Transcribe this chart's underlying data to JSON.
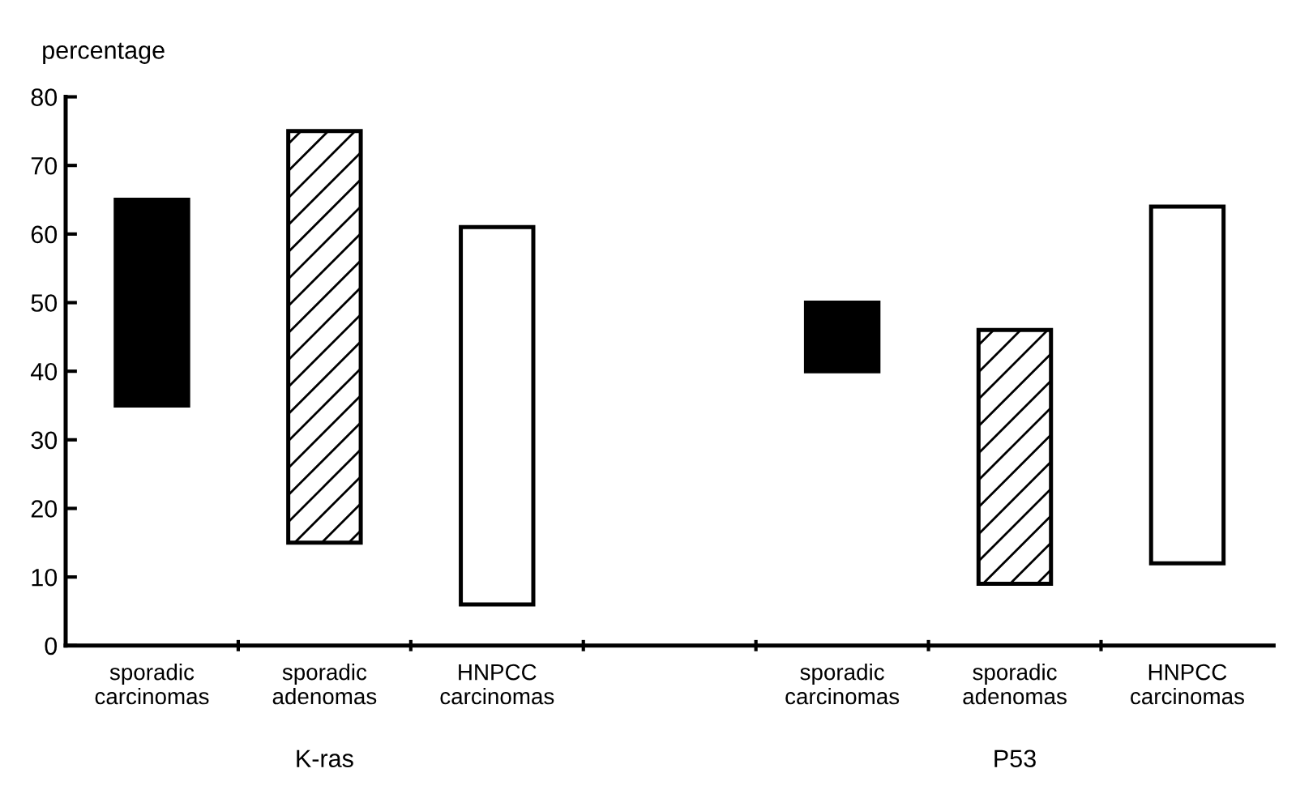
{
  "chart_data": {
    "type": "bar",
    "ylabel": "percentage",
    "categories": [
      "sporadic\ncarcinomas",
      "sporadic\nadenomas",
      "HNPCC\ncarcinomas",
      null,
      "sporadic\ncarcinomas",
      "sporadic\nadenomas",
      "HNPCC\ncarcinomas"
    ],
    "values": [
      30,
      60,
      55,
      null,
      10,
      37,
      52
    ],
    "base": [
      35,
      15,
      6,
      null,
      40,
      9,
      12
    ],
    "colors": [
      "#000000",
      "#ffffff",
      "#ffffff",
      null,
      "#000000",
      "#ffffff",
      "#ffffff"
    ],
    "ylim": [
      0,
      80
    ],
    "yticks": [
      0,
      10,
      20,
      30,
      40,
      50,
      60,
      70,
      80
    ],
    "grid": false,
    "legend": false,
    "annotations": [
      "K-ras",
      "P53"
    ]
  }
}
